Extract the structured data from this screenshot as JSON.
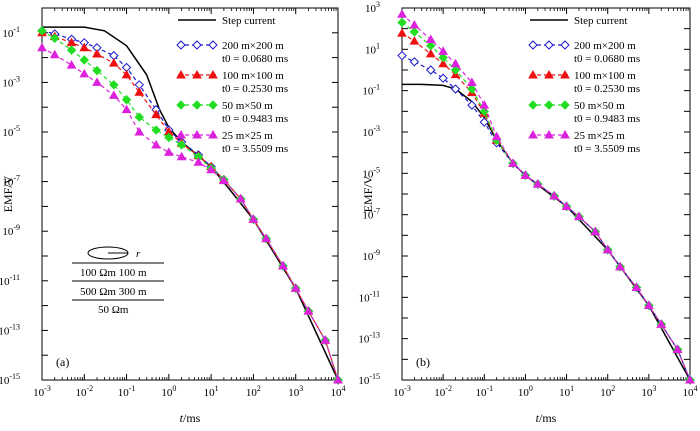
{
  "chart_data": [
    {
      "type": "line",
      "panel_label": "(a)",
      "xlabel_var": "t",
      "xlabel_unit": "/ms",
      "ylabel": "EMF/V",
      "xscale": "log",
      "yscale": "log",
      "xlim": [
        0.001,
        10000
      ],
      "ylim": [
        1e-15,
        1
      ],
      "x_ticks": [
        {
          "b": "10",
          "e": "-3"
        },
        {
          "b": "10",
          "e": "-2"
        },
        {
          "b": "10",
          "e": "-1"
        },
        {
          "b": "10",
          "e": "0"
        },
        {
          "b": "10",
          "e": "1"
        },
        {
          "b": "10",
          "e": "2"
        },
        {
          "b": "10",
          "e": "3"
        },
        {
          "b": "10",
          "e": "4"
        }
      ],
      "y_ticks": [
        {
          "b": "10",
          "e": "-1"
        },
        {
          "b": "10",
          "e": "-3"
        },
        {
          "b": "10",
          "e": "-5"
        },
        {
          "b": "10",
          "e": "-7"
        },
        {
          "b": "10",
          "e": "-9"
        },
        {
          "b": "10",
          "e": "-11"
        },
        {
          "b": "10",
          "e": "-13"
        },
        {
          "b": "10",
          "e": "-15"
        }
      ],
      "inset": {
        "loop_label": "r",
        "layer1": "100 Ωm   100 m",
        "layer2": "500 Ωm   300 m",
        "layer3": "50 Ωm"
      },
      "series": [
        {
          "name": "Step current",
          "name2": "",
          "color": "#000000",
          "marker": "none",
          "x": [
            0.001,
            0.01,
            0.03,
            0.1,
            0.3,
            0.6,
            1,
            2,
            4,
            10,
            30,
            100,
            1000,
            10000
          ],
          "y": [
            0.17,
            0.17,
            0.12,
            0.03,
            0.002,
            8e-05,
            1.5e-05,
            4e-06,
            1.5e-06,
            4e-07,
            4e-08,
            3e-09,
            5e-12,
            1e-15
          ]
        },
        {
          "name": "200 m×200 m",
          "name2": "t0 = 0.0680 ms",
          "color": "#1a1acc",
          "marker": "diamond",
          "x": [
            0.001,
            0.002,
            0.005,
            0.01,
            0.02,
            0.05,
            0.1,
            0.2,
            0.5,
            1,
            2,
            5,
            10,
            20,
            50,
            100,
            200,
            500,
            1000,
            2000,
            5000,
            10000
          ],
          "y": [
            0.12,
            0.09,
            0.055,
            0.04,
            0.025,
            0.012,
            0.004,
            0.0008,
            8e-05,
            1.2e-05,
            4e-06,
            1.2e-06,
            4e-07,
            1.2e-07,
            2e-08,
            3e-09,
            5e-10,
            4e-11,
            5e-12,
            6e-13,
            4e-14,
            1e-15
          ]
        },
        {
          "name": "100 m×100 m",
          "name2": "t0 = 0.2530 ms",
          "color": "#ee1111",
          "marker": "triangle",
          "x": [
            0.001,
            0.002,
            0.005,
            0.01,
            0.02,
            0.05,
            0.1,
            0.2,
            0.5,
            1,
            2,
            5,
            10,
            20,
            50,
            100,
            200,
            500,
            1000,
            2000,
            5000,
            10000
          ],
          "y": [
            0.1,
            0.07,
            0.04,
            0.025,
            0.014,
            0.006,
            0.002,
            0.0004,
            5e-05,
            1e-05,
            3.5e-06,
            1.1e-06,
            4e-07,
            1.2e-07,
            2e-08,
            3e-09,
            5e-10,
            4e-11,
            5e-12,
            6e-13,
            4e-14,
            1e-15
          ]
        },
        {
          "name": "50 m×50 m",
          "name2": "t0 = 0.9483 ms",
          "color": "#22dd22",
          "marker": "diamond",
          "x": [
            0.001,
            0.002,
            0.005,
            0.01,
            0.02,
            0.05,
            0.1,
            0.2,
            0.5,
            1,
            2,
            5,
            10,
            20,
            50,
            100,
            200,
            500,
            1000,
            2000,
            5000,
            10000
          ],
          "y": [
            0.12,
            0.06,
            0.02,
            0.008,
            0.003,
            0.0008,
            0.0002,
            4e-05,
            1.2e-05,
            6e-06,
            3e-06,
            1e-06,
            3.5e-07,
            1.2e-07,
            2e-08,
            3e-09,
            5e-10,
            4e-11,
            5e-12,
            6e-13,
            4e-14,
            1e-15
          ]
        },
        {
          "name": "25 m×25 m",
          "name2": "t0 = 3.5509 ms",
          "color": "#dd22dd",
          "marker": "triangle",
          "x": [
            0.001,
            0.002,
            0.005,
            0.01,
            0.02,
            0.05,
            0.1,
            0.2,
            0.5,
            1,
            2,
            5,
            10,
            20,
            50,
            100,
            200,
            500,
            1000,
            2000,
            5000,
            10000
          ],
          "y": [
            0.025,
            0.013,
            0.005,
            0.0022,
            0.001,
            0.0003,
            8e-05,
            1e-05,
            3e-06,
            1.5e-06,
            1e-06,
            6e-07,
            3e-07,
            1.1e-07,
            2e-08,
            3e-09,
            5e-10,
            4e-11,
            5e-12,
            6e-13,
            4e-14,
            1e-15
          ]
        }
      ]
    },
    {
      "type": "line",
      "panel_label": "(b)",
      "xlabel_var": "t",
      "xlabel_unit": "/ms",
      "ylabel": "EMF/V",
      "xscale": "log",
      "yscale": "log",
      "xlim": [
        0.001,
        10000
      ],
      "ylim": [
        1e-15,
        1000
      ],
      "x_ticks": [
        {
          "b": "10",
          "e": "-3"
        },
        {
          "b": "10",
          "e": "-2"
        },
        {
          "b": "10",
          "e": "-1"
        },
        {
          "b": "10",
          "e": "0"
        },
        {
          "b": "10",
          "e": "1"
        },
        {
          "b": "10",
          "e": "2"
        },
        {
          "b": "10",
          "e": "3"
        },
        {
          "b": "10",
          "e": "4"
        }
      ],
      "y_ticks": [
        {
          "b": "10",
          "e": "3"
        },
        {
          "b": "10",
          "e": "1"
        },
        {
          "b": "10",
          "e": "-1"
        },
        {
          "b": "10",
          "e": "-3"
        },
        {
          "b": "10",
          "e": "-5"
        },
        {
          "b": "10",
          "e": "-7"
        },
        {
          "b": "10",
          "e": "-9"
        },
        {
          "b": "10",
          "e": "-11"
        },
        {
          "b": "10",
          "e": "-13"
        },
        {
          "b": "10",
          "e": "-15"
        }
      ],
      "series": [
        {
          "name": "Step current",
          "name2": "",
          "color": "#000000",
          "marker": "none",
          "x": [
            0.001,
            0.003,
            0.01,
            0.02,
            0.05,
            0.1,
            0.2,
            0.5,
            1,
            3,
            10,
            100,
            1000,
            10000
          ],
          "y": [
            0.2,
            0.2,
            0.18,
            0.12,
            0.03,
            0.005,
            0.0004,
            3e-05,
            8e-06,
            1.5e-06,
            2.5e-07,
            2e-09,
            4e-12,
            1e-15
          ]
        },
        {
          "name": "200 m×200 m",
          "name2": "t0 = 0.0680 ms",
          "color": "#1a1acc",
          "marker": "diamond",
          "x": [
            0.001,
            0.002,
            0.005,
            0.01,
            0.02,
            0.05,
            0.1,
            0.2,
            0.5,
            1,
            2,
            5,
            10,
            20,
            50,
            100,
            200,
            500,
            1000,
            2000,
            5000,
            10000
          ],
          "y": [
            5,
            2.5,
            1,
            0.4,
            0.12,
            0.02,
            0.003,
            0.0003,
            3e-05,
            8e-06,
            3e-06,
            8e-07,
            2.5e-07,
            8e-08,
            1.5e-08,
            2e-09,
            3e-10,
            3e-11,
            4e-12,
            5e-13,
            3e-14,
            1e-15
          ]
        },
        {
          "name": "100 m×100 m",
          "name2": "t0 = 0.2530 ms",
          "color": "#ee1111",
          "marker": "triangle",
          "x": [
            0.001,
            0.002,
            0.005,
            0.01,
            0.02,
            0.05,
            0.1,
            0.2,
            0.5,
            1,
            2,
            5,
            10,
            20,
            50,
            100,
            200,
            500,
            1000,
            2000,
            5000,
            10000
          ],
          "y": [
            60,
            25,
            6,
            2,
            0.6,
            0.08,
            0.008,
            0.0004,
            3e-05,
            8e-06,
            3e-06,
            8e-07,
            2.5e-07,
            8e-08,
            1.5e-08,
            2e-09,
            3e-10,
            3e-11,
            4e-12,
            5e-13,
            3e-14,
            1e-15
          ]
        },
        {
          "name": "50 m×50 m",
          "name2": "t0 = 0.9483 ms",
          "color": "#22dd22",
          "marker": "diamond",
          "x": [
            0.001,
            0.002,
            0.005,
            0.01,
            0.02,
            0.05,
            0.1,
            0.2,
            0.5,
            1,
            2,
            5,
            10,
            20,
            50,
            100,
            200,
            500,
            1000,
            2000,
            5000,
            10000
          ],
          "y": [
            200,
            70,
            15,
            4,
            1,
            0.12,
            0.01,
            0.0004,
            3e-05,
            8e-06,
            3e-06,
            8e-07,
            2.5e-07,
            8e-08,
            1.5e-08,
            2e-09,
            3e-10,
            3e-11,
            4e-12,
            5e-13,
            3e-14,
            1e-15
          ]
        },
        {
          "name": "25 m×25 m",
          "name2": "t0 = 3.5509 ms",
          "color": "#dd22dd",
          "marker": "triangle",
          "x": [
            0.001,
            0.002,
            0.005,
            0.01,
            0.02,
            0.05,
            0.1,
            0.2,
            0.5,
            1,
            2,
            5,
            10,
            20,
            50,
            100,
            200,
            500,
            1000,
            2000,
            5000,
            10000
          ],
          "y": [
            500,
            150,
            30,
            8,
            2,
            0.25,
            0.02,
            0.0006,
            3e-05,
            8e-06,
            3e-06,
            8e-07,
            2.5e-07,
            8e-08,
            1.5e-08,
            2e-09,
            3e-10,
            3e-11,
            4e-12,
            5e-13,
            3e-14,
            1e-15
          ]
        }
      ]
    }
  ]
}
